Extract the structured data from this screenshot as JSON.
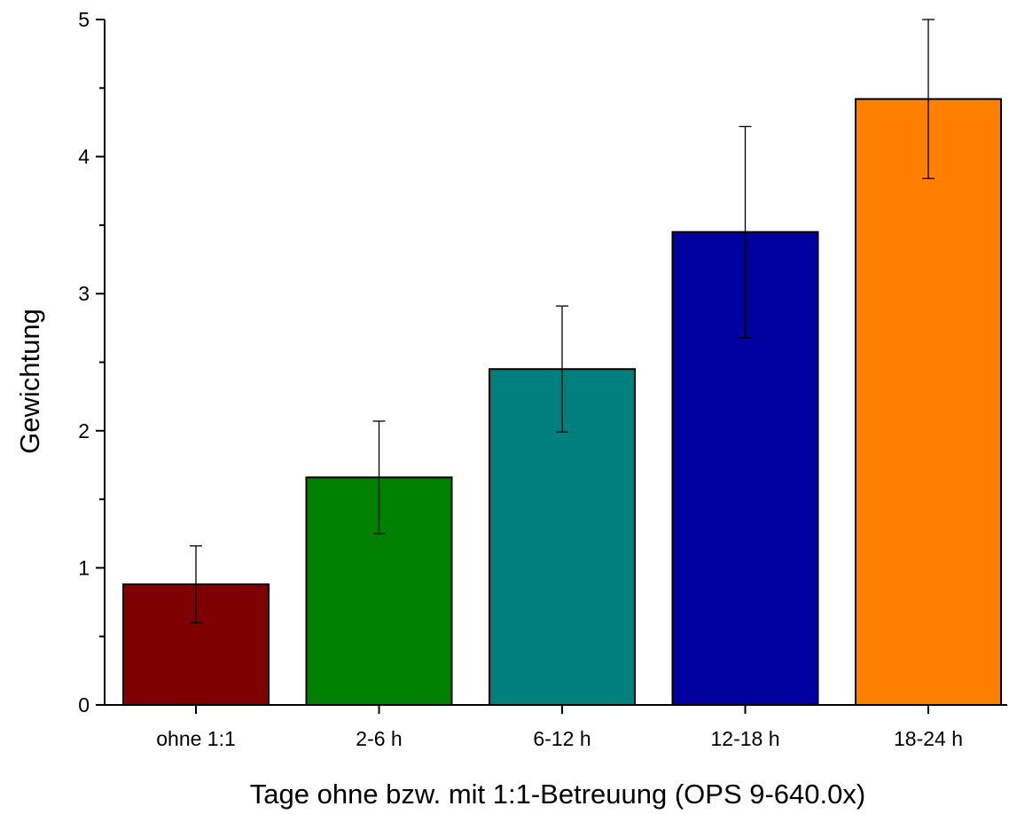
{
  "chart_data": {
    "type": "bar",
    "title": "",
    "xlabel": "Tage ohne bzw. mit 1:1-Betreuung (OPS 9-640.0x)",
    "ylabel": "Gewichtung",
    "categories": [
      "ohne 1:1",
      "2-6 h",
      "6-12 h",
      "12-18 h",
      "18-24 h"
    ],
    "values": [
      0.88,
      1.66,
      2.45,
      3.45,
      4.42
    ],
    "error_low": [
      0.6,
      1.25,
      1.99,
      2.68,
      3.84
    ],
    "error_high": [
      1.16,
      2.07,
      2.91,
      4.22,
      5.0
    ],
    "bar_colors": [
      "#7f0000",
      "#007f00",
      "#007f7f",
      "#00009f",
      "#ff8000"
    ],
    "ylim": [
      0,
      5
    ],
    "yticks": [
      "0",
      "1",
      "2",
      "3",
      "4",
      "5"
    ],
    "grid": false,
    "legend": "none"
  }
}
